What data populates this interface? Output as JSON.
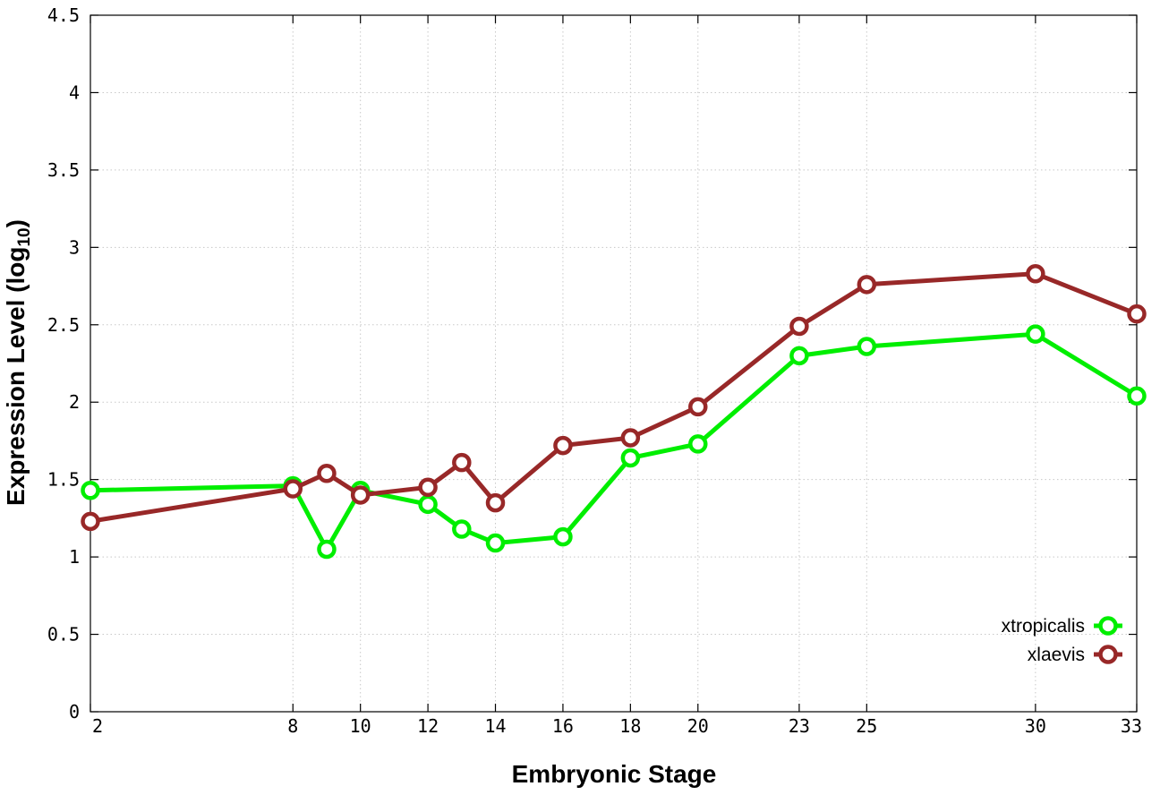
{
  "chart_data": {
    "type": "line",
    "title": "",
    "xlabel": "Embryonic Stage",
    "ylabel": {
      "main": "Expression Level (log",
      "subscript": "10",
      "suffix": ")"
    },
    "xlim": [
      2,
      33
    ],
    "ylim": [
      0,
      4.5
    ],
    "x_ticks": [
      2,
      8,
      10,
      12,
      14,
      16,
      18,
      20,
      23,
      25,
      30,
      33
    ],
    "y_ticks": [
      0,
      0.5,
      1,
      1.5,
      2,
      2.5,
      3,
      3.5,
      4,
      4.5
    ],
    "y_tick_labels": [
      "0",
      "0.5",
      "1",
      "1.5",
      "2",
      "2.5",
      "3",
      "3.5",
      "4",
      "4.5"
    ],
    "grid": true,
    "legend_position": "bottom-right",
    "series": [
      {
        "name": "xtropicalis",
        "color": "#00ee00",
        "x": [
          2,
          8,
          9,
          10,
          12,
          13,
          14,
          16,
          18,
          20,
          23,
          25,
          30,
          33
        ],
        "values": [
          1.43,
          1.46,
          1.05,
          1.43,
          1.34,
          1.18,
          1.09,
          1.13,
          1.64,
          1.73,
          2.3,
          2.36,
          2.44,
          2.04
        ]
      },
      {
        "name": "xlaevis",
        "color": "#982828",
        "x": [
          2,
          8,
          9,
          10,
          12,
          13,
          14,
          16,
          18,
          20,
          23,
          25,
          30,
          33
        ],
        "values": [
          1.23,
          1.44,
          1.54,
          1.4,
          1.45,
          1.61,
          1.35,
          1.72,
          1.77,
          1.97,
          2.49,
          2.76,
          2.83,
          2.57
        ]
      }
    ]
  }
}
